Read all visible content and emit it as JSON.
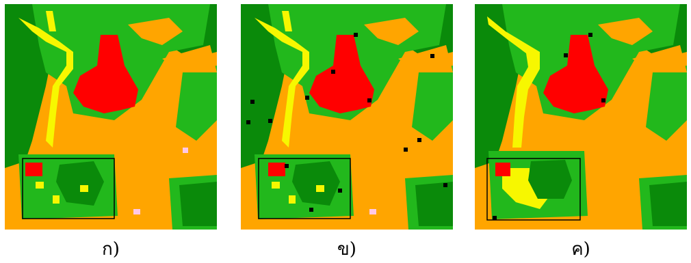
{
  "colors": {
    "dark_green": "#0a8a0a",
    "green": "#22b81c",
    "orange": "#ffa500",
    "yellow": "#f7f700",
    "red": "#ff0000",
    "pink": "#ffc8e6",
    "black": "#000000"
  },
  "panels": [
    {
      "caption": "ก)",
      "variant": "original"
    },
    {
      "caption": "ข)",
      "variant": "noisy"
    },
    {
      "caption": "ค)",
      "variant": "smoothed"
    }
  ]
}
